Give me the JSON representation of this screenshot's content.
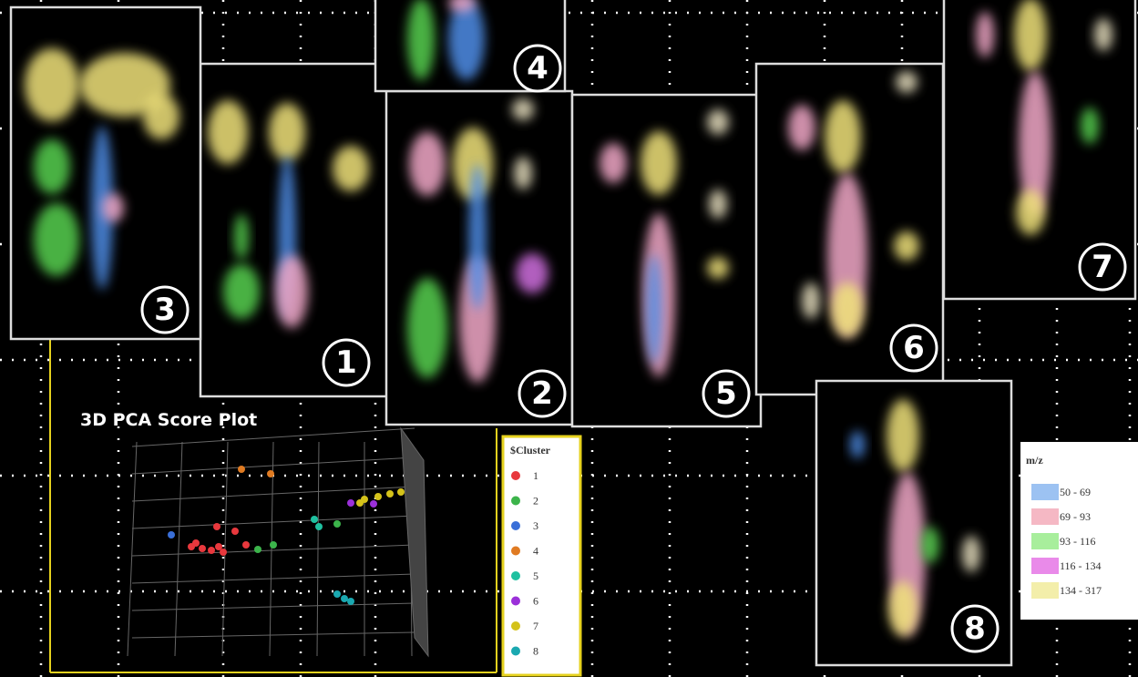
{
  "panels": [
    {
      "label": "1"
    },
    {
      "label": "2"
    },
    {
      "label": "3"
    },
    {
      "label": "4"
    },
    {
      "label": "5"
    },
    {
      "label": "6"
    },
    {
      "label": "7"
    },
    {
      "label": "8"
    }
  ],
  "pca": {
    "title": "3D PCA Score Plot",
    "legend_title": "$Cluster",
    "clusters": [
      {
        "label": "1",
        "color": "#e8383d"
      },
      {
        "label": "2",
        "color": "#3cb44b"
      },
      {
        "label": "3",
        "color": "#3a6fd8"
      },
      {
        "label": "4",
        "color": "#e07b22"
      },
      {
        "label": "5",
        "color": "#1fc0a0"
      },
      {
        "label": "6",
        "color": "#9b30d9"
      },
      {
        "label": "7",
        "color": "#d4c21a"
      },
      {
        "label": "8",
        "color": "#1aa8b0"
      }
    ]
  },
  "mz_legend": {
    "title": "m/z",
    "ranges": [
      {
        "label": "50 - 69",
        "color": "#9cc2f2"
      },
      {
        "label": "69 - 93",
        "color": "#f5b8c4"
      },
      {
        "label": "93 - 116",
        "color": "#a8ee9c"
      },
      {
        "label": "116 - 134",
        "color": "#e98ae9"
      },
      {
        "label": "134 - 317",
        "color": "#f3eeaa"
      }
    ]
  }
}
